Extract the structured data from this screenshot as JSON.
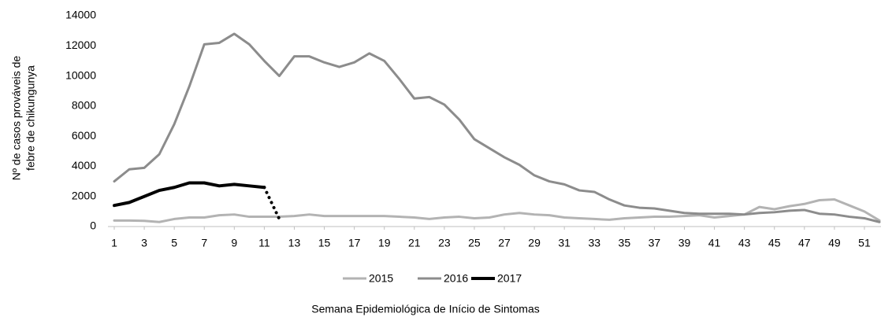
{
  "chart_data": {
    "type": "line",
    "y_label": [
      "Nº de casos prováveis de",
      "febre de chikungunya"
    ],
    "x_label": "Semana Epidemiológica de Início de Sintomas",
    "x": [
      1,
      2,
      3,
      4,
      5,
      6,
      7,
      8,
      9,
      10,
      11,
      12,
      13,
      14,
      15,
      16,
      17,
      18,
      19,
      20,
      21,
      22,
      23,
      24,
      25,
      26,
      27,
      28,
      29,
      30,
      31,
      32,
      33,
      34,
      35,
      36,
      37,
      38,
      39,
      40,
      41,
      42,
      43,
      44,
      45,
      46,
      47,
      48,
      49,
      50,
      51,
      52
    ],
    "xlim": [
      1,
      52
    ],
    "xticks": [
      1,
      3,
      5,
      7,
      9,
      11,
      13,
      15,
      17,
      19,
      21,
      23,
      25,
      27,
      29,
      31,
      33,
      35,
      37,
      39,
      41,
      43,
      45,
      47,
      49,
      51
    ],
    "ylim": [
      0,
      14000
    ],
    "yticks": [
      0,
      2000,
      4000,
      6000,
      8000,
      10000,
      12000,
      14000
    ],
    "grid": false,
    "legend": "bottom",
    "series": [
      {
        "name": "2015",
        "color": "#b3b3b3",
        "width": 3,
        "values": [
          400,
          400,
          380,
          300,
          500,
          600,
          600,
          750,
          800,
          650,
          650,
          650,
          700,
          800,
          700,
          700,
          700,
          700,
          700,
          650,
          600,
          500,
          600,
          650,
          550,
          600,
          800,
          900,
          800,
          750,
          600,
          550,
          500,
          450,
          550,
          600,
          650,
          650,
          700,
          750,
          600,
          700,
          800,
          1300,
          1150,
          1350,
          1500,
          1750,
          1800,
          1400,
          1000,
          400
        ]
      },
      {
        "name": "2016",
        "color": "#8c8c8c",
        "width": 3,
        "values": [
          3000,
          3800,
          3900,
          4800,
          6800,
          9300,
          12100,
          12200,
          12800,
          12100,
          11000,
          10000,
          11300,
          11300,
          10900,
          10600,
          10900,
          11500,
          11000,
          9800,
          8500,
          8600,
          8100,
          7100,
          5800,
          5200,
          4600,
          4100,
          3400,
          3000,
          2800,
          2400,
          2300,
          1800,
          1400,
          1250,
          1200,
          1050,
          900,
          850,
          850,
          850,
          800,
          900,
          950,
          1050,
          1100,
          850,
          800,
          650,
          550,
          300
        ]
      },
      {
        "name": "2017",
        "color": "#000000",
        "width": 4,
        "last_segment": "dotted",
        "values": [
          1400,
          1600,
          2000,
          2400,
          2600,
          2900,
          2900,
          2700,
          2800,
          2700,
          2600,
          500,
          null,
          null,
          null,
          null,
          null,
          null,
          null,
          null,
          null,
          null,
          null,
          null,
          null,
          null,
          null,
          null,
          null,
          null,
          null,
          null,
          null,
          null,
          null,
          null,
          null,
          null,
          null,
          null,
          null,
          null,
          null,
          null,
          null,
          null,
          null,
          null,
          null,
          null,
          null,
          null
        ]
      }
    ]
  }
}
